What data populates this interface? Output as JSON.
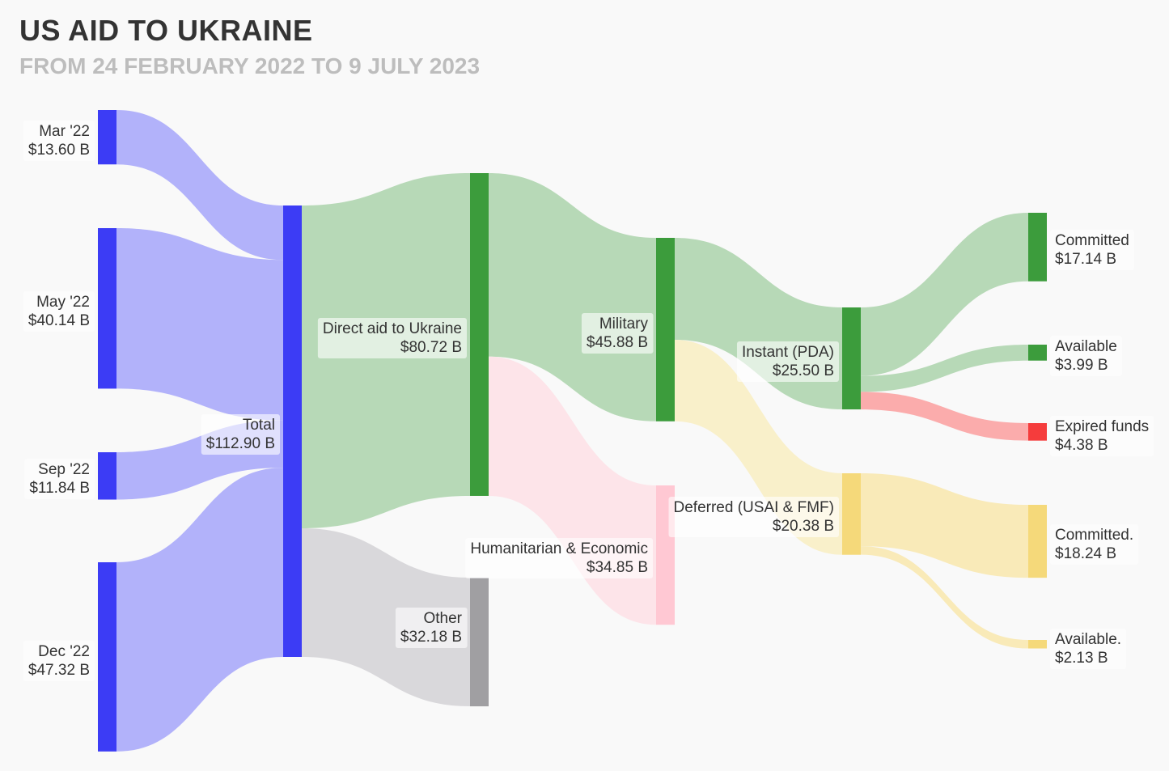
{
  "header": {
    "title": "US AID TO UKRAINE",
    "subtitle": "FROM 24 FEBRUARY 2022 TO 9 JULY 2023"
  },
  "chart_data": {
    "type": "sankey",
    "title": "US AID TO UKRAINE",
    "subtitle": "FROM 24 FEBRUARY 2022 TO 9 JULY 2023",
    "unit": "$ B",
    "nodes": [
      {
        "id": "mar22",
        "name": "Mar '22",
        "value_label": "$13.60 B",
        "value": 13.6,
        "color": "#3c3cf5"
      },
      {
        "id": "may22",
        "name": "May '22",
        "value_label": "$40.14 B",
        "value": 40.14,
        "color": "#3c3cf5"
      },
      {
        "id": "sep22",
        "name": "Sep '22",
        "value_label": "$11.84 B",
        "value": 11.84,
        "color": "#3c3cf5"
      },
      {
        "id": "dec22",
        "name": "Dec '22",
        "value_label": "$47.32 B",
        "value": 47.32,
        "color": "#3c3cf5"
      },
      {
        "id": "total",
        "name": "Total",
        "value_label": "$112.90 B",
        "value": 112.9,
        "color": "#3c3cf5"
      },
      {
        "id": "direct",
        "name": "Direct aid to Ukraine",
        "value_label": "$80.72 B",
        "value": 80.72,
        "color": "#3c9c3c"
      },
      {
        "id": "other",
        "name": "Other",
        "value_label": "$32.18 B",
        "value": 32.18,
        "color": "#a09fa2"
      },
      {
        "id": "military",
        "name": "Military",
        "value_label": "$45.88 B",
        "value": 45.88,
        "color": "#3c9c3c"
      },
      {
        "id": "humanitarian",
        "name": "Humanitarian & Economic",
        "value_label": "$34.85 B",
        "value": 34.85,
        "color": "#ffc8d3"
      },
      {
        "id": "instant",
        "name": "Instant (PDA)",
        "value_label": "$25.50 B",
        "value": 25.5,
        "color": "#3c9c3c"
      },
      {
        "id": "deferred",
        "name": "Deferred (USAI & FMF)",
        "value_label": "$20.38 B",
        "value": 20.38,
        "color": "#f5d97a"
      },
      {
        "id": "committed1",
        "name": "Committed",
        "value_label": "$17.14 B",
        "value": 17.14,
        "color": "#3c9c3c"
      },
      {
        "id": "available1",
        "name": "Available",
        "value_label": "$3.99 B",
        "value": 3.99,
        "color": "#3c9c3c"
      },
      {
        "id": "expired",
        "name": "Expired funds",
        "value_label": "$4.38 B",
        "value": 4.38,
        "color": "#f53c3c"
      },
      {
        "id": "committed2",
        "name": "Committed.",
        "value_label": "$18.24 B",
        "value": 18.24,
        "color": "#f5d97a"
      },
      {
        "id": "available2",
        "name": "Available.",
        "value_label": "$2.13 B",
        "value": 2.13,
        "color": "#f5d97a"
      }
    ],
    "links": [
      {
        "source": "mar22",
        "target": "total",
        "value": 13.6,
        "color": "#aeaefa"
      },
      {
        "source": "may22",
        "target": "total",
        "value": 40.14,
        "color": "#aeaefa"
      },
      {
        "source": "sep22",
        "target": "total",
        "value": 11.84,
        "color": "#aeaefa"
      },
      {
        "source": "dec22",
        "target": "total",
        "value": 47.32,
        "color": "#aeaefa"
      },
      {
        "source": "total",
        "target": "direct",
        "value": 80.72,
        "color": "#b3d7b3"
      },
      {
        "source": "total",
        "target": "other",
        "value": 32.18,
        "color": "#d7d6d9"
      },
      {
        "source": "direct",
        "target": "military",
        "value": 45.88,
        "color": "#b3d7b3"
      },
      {
        "source": "direct",
        "target": "humanitarian",
        "value": 34.85,
        "color": "#fde3e8"
      },
      {
        "source": "military",
        "target": "instant",
        "value": 25.5,
        "color": "#b3d7b3"
      },
      {
        "source": "military",
        "target": "deferred",
        "value": 20.38,
        "color": "#f9efc7"
      },
      {
        "source": "instant",
        "target": "committed1",
        "value": 17.14,
        "color": "#b3d7b3"
      },
      {
        "source": "instant",
        "target": "available1",
        "value": 3.99,
        "color": "#b3d7b3"
      },
      {
        "source": "instant",
        "target": "expired",
        "value": 4.38,
        "color": "#fba8a8"
      },
      {
        "source": "deferred",
        "target": "committed2",
        "value": 18.24,
        "color": "#f9e9b4"
      },
      {
        "source": "deferred",
        "target": "available2",
        "value": 2.13,
        "color": "#f9e9b4"
      }
    ]
  }
}
